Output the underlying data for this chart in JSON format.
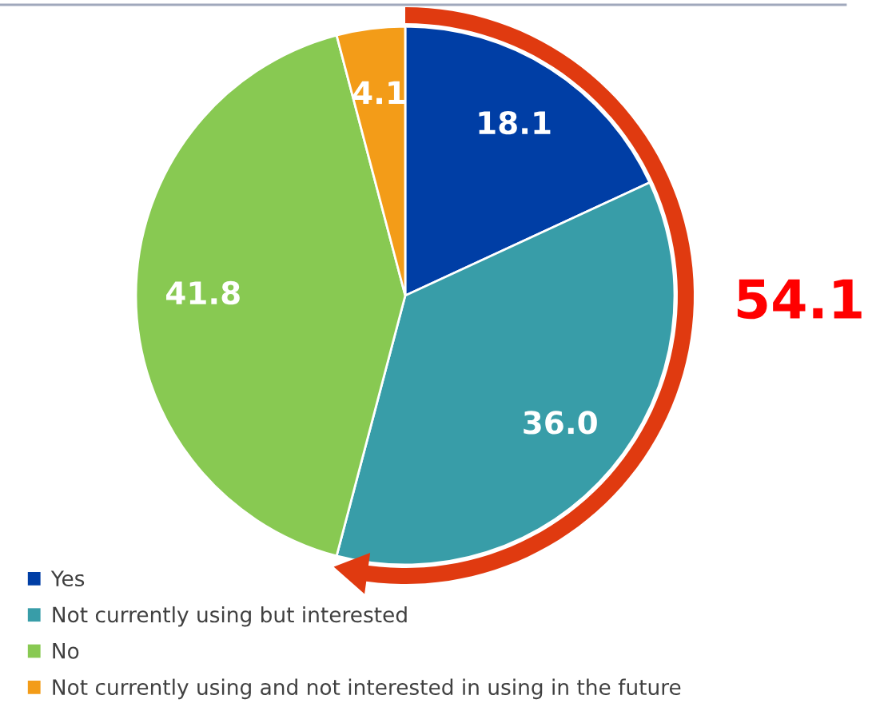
{
  "chart_data": {
    "type": "pie",
    "categories": [
      "Yes",
      "Not currently using but interested",
      "No",
      "Not currently using and not interested in using in the future"
    ],
    "values": [
      18.1,
      36.0,
      41.8,
      4.1
    ],
    "colors": [
      "#003ea5",
      "#389da8",
      "#88c952",
      "#f39c18"
    ],
    "value_labels": [
      "18.1",
      "36.0",
      "41.8",
      "4.1"
    ],
    "legend": "bottom left",
    "annotations": [
      "54.1"
    ]
  }
}
